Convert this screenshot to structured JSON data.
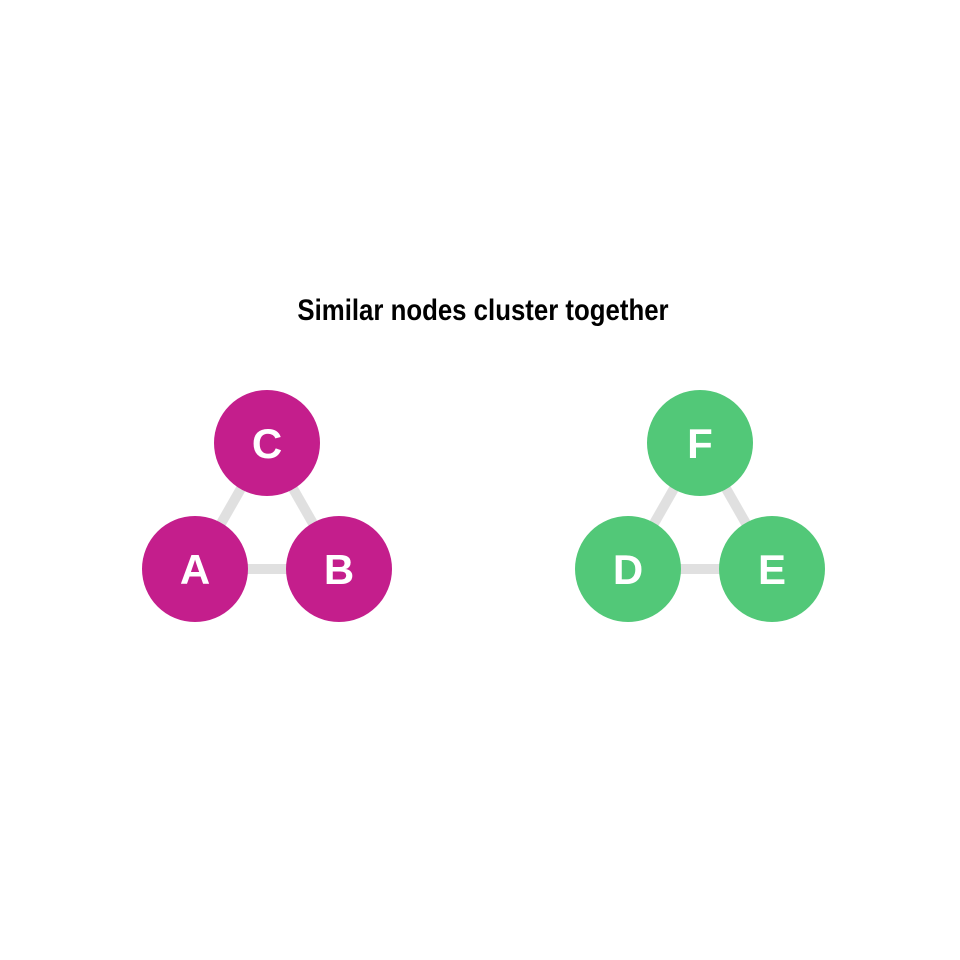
{
  "title": "Similar nodes cluster together",
  "clusters": [
    {
      "name": "magenta-cluster",
      "color": "#c41e8c",
      "nodes": [
        {
          "id": "A",
          "label": "A"
        },
        {
          "id": "B",
          "label": "B"
        },
        {
          "id": "C",
          "label": "C"
        }
      ],
      "edges": [
        [
          "A",
          "B"
        ],
        [
          "A",
          "C"
        ],
        [
          "B",
          "C"
        ]
      ]
    },
    {
      "name": "green-cluster",
      "color": "#52c878",
      "nodes": [
        {
          "id": "D",
          "label": "D"
        },
        {
          "id": "E",
          "label": "E"
        },
        {
          "id": "F",
          "label": "F"
        }
      ],
      "edges": [
        [
          "D",
          "E"
        ],
        [
          "D",
          "F"
        ],
        [
          "E",
          "F"
        ]
      ]
    }
  ],
  "edge_color": "#e0e0e0"
}
